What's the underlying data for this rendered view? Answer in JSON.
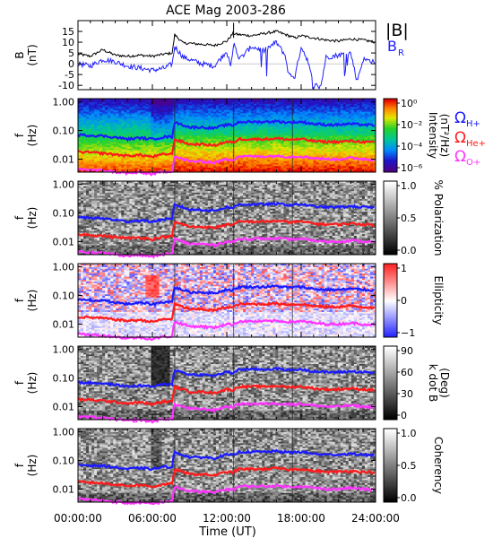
{
  "chart_data": {
    "type": "spectrogram",
    "title": "ACE Mag 2003-286",
    "x_axis": {
      "label": "Time (UT)",
      "ticks": [
        "00:00:00",
        "06:00:00",
        "12:00:00",
        "18:00:00",
        "24:00:00"
      ],
      "range_hours": [
        0,
        24
      ]
    },
    "panels": [
      {
        "kind": "line",
        "ylabel": "B",
        "yunit": "(nT)",
        "ylim": [
          -12,
          20
        ],
        "yticks": [
          "15",
          "10",
          "5",
          "0",
          "-5",
          "-10"
        ],
        "ytick_values": [
          15,
          10,
          5,
          0,
          -5,
          -10
        ],
        "legend": [
          "|B|",
          "B_R"
        ],
        "series": [
          {
            "name": "|B|",
            "color": "#000000",
            "t_hours": [
              0,
              1,
              2,
              3,
              4,
              5,
              6,
              7,
              7.6,
              7.8,
              8.5,
              9,
              10,
              11,
              12,
              12.5,
              13,
              14,
              15,
              16,
              17,
              17.5,
              18,
              19,
              20,
              21,
              22,
              23,
              24
            ],
            "values": [
              4.5,
              3.5,
              6.5,
              4,
              3.5,
              4,
              3.5,
              4.5,
              5,
              13.5,
              9.5,
              9.5,
              9,
              8.5,
              10.5,
              14,
              13.5,
              13,
              14,
              15,
              13,
              12,
              13,
              12,
              11,
              10.5,
              11.5,
              11,
              10
            ]
          },
          {
            "name": "B_R",
            "color": "#2020ff",
            "t_hours": [
              0,
              1,
              2,
              3,
              4,
              5,
              6,
              7,
              7.6,
              7.8,
              8.5,
              9,
              10,
              11,
              12,
              12.3,
              12.6,
              13,
              14,
              15,
              16,
              16.7,
              17,
              17.5,
              18,
              18.5,
              19,
              19.6,
              20,
              21,
              22,
              22.5,
              23,
              24
            ],
            "values": [
              0,
              -1,
              2,
              1,
              -1,
              -2,
              -3,
              -2,
              0,
              8,
              3,
              2,
              0,
              -1,
              6,
              -2,
              10,
              2,
              8,
              6,
              10,
              4,
              -5,
              -6,
              8,
              2,
              -10,
              -10,
              3,
              4,
              5,
              -8,
              2,
              1
            ]
          }
        ]
      },
      {
        "kind": "spectrogram",
        "ylabel": "f",
        "yunit": "(Hz)",
        "yticks": [
          "1.00",
          "0.10",
          "0.01"
        ],
        "colorbar": {
          "label": "Intensity",
          "unit": "(nT²/Hz)",
          "ticks": [
            "10⁰",
            "10⁻²",
            "10⁻⁴",
            "10⁻⁶"
          ],
          "colormap": "rainbow"
        }
      },
      {
        "kind": "spectrogram",
        "ylabel": "f",
        "yunit": "(Hz)",
        "yticks": [
          "1.00",
          "0.10",
          "0.01"
        ],
        "colorbar": {
          "label": "% Polarization",
          "ticks": [
            "1.0",
            "0.5",
            "0.0"
          ],
          "colormap": "gray"
        }
      },
      {
        "kind": "spectrogram",
        "ylabel": "f",
        "yunit": "(Hz)",
        "yticks": [
          "1.00",
          "0.10",
          "0.01"
        ],
        "colorbar": {
          "label": "Ellipticity",
          "ticks": [
            "1",
            "0",
            "−1"
          ],
          "colormap": "bwr"
        }
      },
      {
        "kind": "spectrogram",
        "ylabel": "f",
        "yunit": "(Hz)",
        "yticks": [
          "1.00",
          "0.10",
          "0.01"
        ],
        "colorbar": {
          "label": "k dot B",
          "unit": "(Deg)",
          "ticks": [
            "90",
            "60",
            "30",
            "0"
          ],
          "colormap": "gray"
        }
      },
      {
        "kind": "spectrogram",
        "ylabel": "f",
        "yunit": "(Hz)",
        "yticks": [
          "1.00",
          "0.10",
          "0.01"
        ],
        "colorbar": {
          "label": "Coherency",
          "ticks": [
            "1.0",
            "0.5",
            "0.0"
          ],
          "colormap": "gray"
        }
      }
    ],
    "overlay_lines": [
      {
        "name": "Ω_H+",
        "color": "#1a1aff",
        "t_hours": [
          0,
          2,
          4,
          5,
          6,
          7,
          7.6,
          7.8,
          9,
          10,
          11,
          12,
          12.5,
          13,
          15,
          16,
          17,
          18,
          19,
          20,
          21,
          22,
          23,
          24
        ],
        "values": [
          0.07,
          0.065,
          0.05,
          0.055,
          0.05,
          0.06,
          0.06,
          0.19,
          0.13,
          0.13,
          0.12,
          0.16,
          0.15,
          0.2,
          0.2,
          0.21,
          0.19,
          0.2,
          0.17,
          0.16,
          0.16,
          0.17,
          0.16,
          0.15
        ]
      },
      {
        "name": "Ω_He+",
        "color": "#ff1a1a",
        "t_hours": [
          0,
          2,
          4,
          5,
          6,
          7,
          7.6,
          7.8,
          9,
          10,
          11,
          12,
          12.5,
          13,
          15,
          16,
          17,
          18,
          19,
          20,
          21,
          22,
          23,
          24
        ],
        "values": [
          0.018,
          0.016,
          0.013,
          0.014,
          0.012,
          0.015,
          0.015,
          0.048,
          0.033,
          0.033,
          0.03,
          0.04,
          0.038,
          0.05,
          0.05,
          0.053,
          0.048,
          0.05,
          0.043,
          0.04,
          0.04,
          0.043,
          0.04,
          0.038
        ]
      },
      {
        "name": "Ω_O+",
        "color": "#ff33ff",
        "t_hours": [
          0,
          2,
          4,
          5,
          6,
          7,
          7.6,
          7.8,
          9,
          10,
          11,
          12,
          12.5,
          13,
          15,
          16,
          17,
          18,
          19,
          20,
          21,
          22,
          23,
          24
        ],
        "values": [
          0.0045,
          0.004,
          0.0032,
          0.0034,
          0.003,
          0.0037,
          0.0037,
          0.012,
          0.0083,
          0.0083,
          0.0075,
          0.01,
          0.0095,
          0.0125,
          0.0125,
          0.013,
          0.012,
          0.0125,
          0.011,
          0.01,
          0.01,
          0.011,
          0.01,
          0.0095
        ]
      }
    ],
    "legend_labels": {
      "h": "Ω",
      "h_sub": "H+",
      "he": "Ω",
      "he_sub": "He+",
      "o": "Ω",
      "o_sub": "O+"
    }
  }
}
